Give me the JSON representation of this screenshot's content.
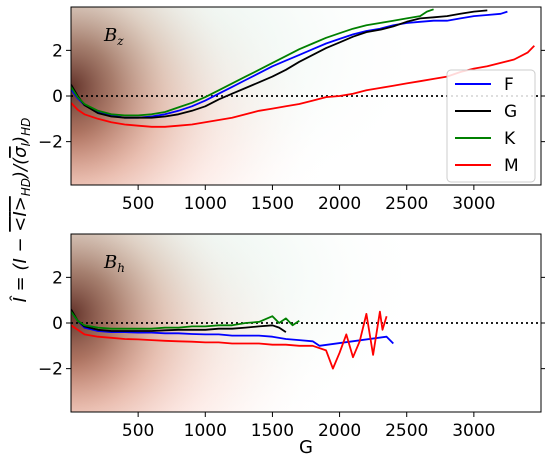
{
  "chart_data": [
    {
      "type": "line",
      "panel_label": "B_z",
      "panel_label_main": "B",
      "panel_label_sub": "z",
      "xlim": [
        0,
        3500
      ],
      "ylim": [
        -3.9,
        3.9
      ],
      "xticks": [
        500,
        1000,
        1500,
        2000,
        2500,
        3000
      ],
      "yticks": [
        2,
        0,
        -2
      ],
      "ytick_labels": [
        "2",
        "0",
        "−2"
      ],
      "reference_line_y": 0,
      "legend": {
        "placement": "right",
        "entries": [
          "F",
          "G",
          "K",
          "M"
        ]
      },
      "series": [
        {
          "name": "F",
          "color": "#0000ff",
          "x": [
            0,
            50,
            100,
            200,
            300,
            400,
            500,
            600,
            700,
            800,
            900,
            1000,
            1100,
            1200,
            1300,
            1400,
            1500,
            1600,
            1700,
            1800,
            1900,
            2000,
            2100,
            2200,
            2300,
            2400,
            2500,
            2600,
            2700,
            2800,
            2900,
            3000,
            3100,
            3200,
            3250
          ],
          "y": [
            0.3,
            -0.1,
            -0.4,
            -0.7,
            -0.85,
            -0.95,
            -0.95,
            -0.9,
            -0.8,
            -0.65,
            -0.45,
            -0.2,
            0.1,
            0.4,
            0.7,
            1.0,
            1.3,
            1.55,
            1.8,
            2.05,
            2.3,
            2.5,
            2.7,
            2.85,
            2.95,
            3.1,
            3.2,
            3.25,
            3.3,
            3.3,
            3.4,
            3.5,
            3.55,
            3.6,
            3.7
          ]
        },
        {
          "name": "G",
          "color": "#000000",
          "x": [
            0,
            50,
            100,
            200,
            300,
            400,
            500,
            600,
            700,
            800,
            900,
            1000,
            1100,
            1200,
            1300,
            1400,
            1500,
            1600,
            1700,
            1800,
            1900,
            2000,
            2100,
            2200,
            2300,
            2400,
            2500,
            2600,
            2700,
            2800,
            2900,
            3000,
            3100
          ],
          "y": [
            0.5,
            0.0,
            -0.4,
            -0.75,
            -0.9,
            -0.95,
            -0.95,
            -0.95,
            -0.9,
            -0.8,
            -0.65,
            -0.45,
            -0.15,
            0.1,
            0.35,
            0.6,
            0.85,
            1.15,
            1.5,
            1.8,
            2.1,
            2.35,
            2.6,
            2.8,
            2.9,
            3.05,
            3.25,
            3.4,
            3.45,
            3.5,
            3.6,
            3.7,
            3.75
          ]
        },
        {
          "name": "K",
          "color": "#008000",
          "x": [
            0,
            50,
            100,
            200,
            300,
            400,
            500,
            600,
            700,
            800,
            900,
            1000,
            1100,
            1200,
            1300,
            1400,
            1500,
            1600,
            1700,
            1800,
            1900,
            2000,
            2100,
            2200,
            2300,
            2400,
            2500,
            2600,
            2650,
            2700
          ],
          "y": [
            0.4,
            -0.05,
            -0.35,
            -0.65,
            -0.8,
            -0.85,
            -0.85,
            -0.8,
            -0.7,
            -0.5,
            -0.3,
            -0.05,
            0.25,
            0.55,
            0.85,
            1.15,
            1.45,
            1.75,
            2.05,
            2.3,
            2.55,
            2.75,
            2.95,
            3.1,
            3.2,
            3.3,
            3.4,
            3.5,
            3.7,
            3.8
          ]
        },
        {
          "name": "M",
          "color": "#ff0000",
          "x": [
            0,
            50,
            100,
            200,
            300,
            400,
            500,
            600,
            700,
            800,
            900,
            1000,
            1100,
            1200,
            1300,
            1400,
            1500,
            1600,
            1700,
            1800,
            1900,
            2000,
            2100,
            2200,
            2300,
            2400,
            2500,
            2600,
            2700,
            2800,
            2900,
            3000,
            3100,
            3200,
            3300,
            3400,
            3450
          ],
          "y": [
            -0.3,
            -0.6,
            -0.8,
            -1.0,
            -1.15,
            -1.25,
            -1.3,
            -1.35,
            -1.35,
            -1.3,
            -1.25,
            -1.15,
            -1.05,
            -0.95,
            -0.8,
            -0.65,
            -0.55,
            -0.45,
            -0.35,
            -0.2,
            -0.05,
            0.0,
            0.1,
            0.25,
            0.35,
            0.45,
            0.55,
            0.65,
            0.75,
            0.85,
            1.05,
            1.2,
            1.3,
            1.45,
            1.6,
            1.9,
            2.2
          ]
        }
      ]
    },
    {
      "type": "line",
      "panel_label": "B_h",
      "panel_label_main": "B",
      "panel_label_sub": "h",
      "xlim": [
        0,
        3500
      ],
      "ylim": [
        -3.9,
        3.9
      ],
      "xticks": [
        500,
        1000,
        1500,
        2000,
        2500,
        3000
      ],
      "xtick_labels": [
        "500",
        "1000",
        "1500",
        "2000",
        "2500",
        "3000"
      ],
      "yticks": [
        2,
        0,
        -2
      ],
      "ytick_labels": [
        "2",
        "0",
        "−2"
      ],
      "xlabel": "G",
      "reference_line_y": 0,
      "series": [
        {
          "name": "F",
          "color": "#0000ff",
          "x": [
            0,
            50,
            100,
            200,
            300,
            400,
            500,
            600,
            700,
            800,
            900,
            1000,
            1100,
            1200,
            1300,
            1400,
            1500,
            1600,
            1700,
            1800,
            1850,
            2350,
            2400
          ],
          "y": [
            0.5,
            0.1,
            -0.2,
            -0.35,
            -0.4,
            -0.4,
            -0.42,
            -0.42,
            -0.45,
            -0.45,
            -0.48,
            -0.5,
            -0.5,
            -0.55,
            -0.55,
            -0.55,
            -0.6,
            -0.7,
            -0.75,
            -0.8,
            -1.0,
            -0.6,
            -0.9
          ]
        },
        {
          "name": "G",
          "color": "#000000",
          "x": [
            0,
            50,
            100,
            200,
            300,
            400,
            500,
            600,
            700,
            800,
            900,
            1000,
            1100,
            1200,
            1300,
            1400,
            1500,
            1550,
            1600
          ],
          "y": [
            0.6,
            0.1,
            -0.15,
            -0.3,
            -0.35,
            -0.35,
            -0.35,
            -0.35,
            -0.32,
            -0.3,
            -0.3,
            -0.3,
            -0.25,
            -0.25,
            -0.2,
            -0.15,
            -0.1,
            -0.2,
            -0.4
          ]
        },
        {
          "name": "K",
          "color": "#008000",
          "x": [
            0,
            50,
            100,
            200,
            300,
            400,
            500,
            600,
            700,
            800,
            900,
            1000,
            1100,
            1200,
            1300,
            1400,
            1500,
            1550,
            1600,
            1650,
            1700
          ],
          "y": [
            0.5,
            0.1,
            -0.1,
            -0.2,
            -0.25,
            -0.25,
            -0.25,
            -0.25,
            -0.2,
            -0.2,
            -0.15,
            -0.15,
            -0.1,
            -0.1,
            0.0,
            0.05,
            0.3,
            0.0,
            0.2,
            -0.1,
            0.1
          ]
        },
        {
          "name": "M",
          "color": "#ff0000",
          "x": [
            0,
            50,
            100,
            200,
            300,
            400,
            500,
            600,
            700,
            800,
            900,
            1000,
            1100,
            1200,
            1300,
            1400,
            1500,
            1600,
            1700,
            1800,
            1900,
            1950,
            2000,
            2050,
            2100,
            2150,
            2200,
            2250,
            2300,
            2320,
            2350
          ],
          "y": [
            -0.1,
            -0.3,
            -0.5,
            -0.6,
            -0.65,
            -0.7,
            -0.72,
            -0.75,
            -0.78,
            -0.8,
            -0.82,
            -0.85,
            -0.85,
            -0.9,
            -0.9,
            -0.9,
            -0.95,
            -0.95,
            -1.0,
            -1.0,
            -1.2,
            -2.0,
            -1.3,
            -0.5,
            -1.5,
            -0.8,
            0.4,
            -1.4,
            0.5,
            -0.3,
            0.3
          ]
        }
      ]
    }
  ],
  "shared_ylabel_text": "Î = (I − <I>HD)/(σI)HD",
  "ylabel_parts": {
    "lhs": "Î",
    "eq": " = (",
    "i": "I",
    "minus": " − ",
    "mean_l": "<",
    "mean_i": "I",
    "mean_r": ">",
    "sub_hd1": "HD",
    "mid": ")/(",
    "sigma": "σ",
    "sigma_sub": "I",
    "close": ")",
    "sub_hd2": "HD"
  }
}
